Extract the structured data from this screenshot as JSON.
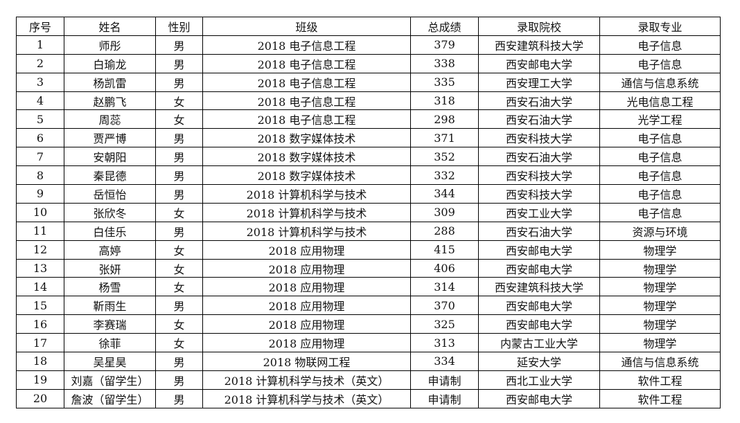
{
  "table": {
    "headers": [
      "序号",
      "姓名",
      "性别",
      "班级",
      "总成绩",
      "录取院校",
      "录取专业"
    ],
    "rows": [
      [
        "1",
        "师彤",
        "男",
        "2018 电子信息工程",
        "379",
        "西安建筑科技大学",
        "电子信息"
      ],
      [
        "2",
        "白瑜龙",
        "男",
        "2018 电子信息工程",
        "338",
        "西安邮电大学",
        "电子信息"
      ],
      [
        "3",
        "杨凯雷",
        "男",
        "2018 电子信息工程",
        "335",
        "西安理工大学",
        "通信与信息系统"
      ],
      [
        "4",
        "赵鹏飞",
        "女",
        "2018 电子信息工程",
        "318",
        "西安石油大学",
        "光电信息工程"
      ],
      [
        "5",
        "周蕊",
        "女",
        "2018 电子信息工程",
        "298",
        "西安石油大学",
        "光学工程"
      ],
      [
        "6",
        "贾严博",
        "男",
        "2018 数字媒体技术",
        "371",
        "西安科技大学",
        "电子信息"
      ],
      [
        "7",
        "安朝阳",
        "男",
        "2018 数字媒体技术",
        "352",
        "西安石油大学",
        "电子信息"
      ],
      [
        "8",
        "秦昆德",
        "男",
        "2018 数字媒体技术",
        "332",
        "西安科技大学",
        "电子信息"
      ],
      [
        "9",
        "岳恒怡",
        "男",
        "2018 计算机科学与技术",
        "344",
        "西安科技大学",
        "电子信息"
      ],
      [
        "10",
        "张欣冬",
        "女",
        "2018 计算机科学与技术",
        "309",
        "西安工业大学",
        "电子信息"
      ],
      [
        "11",
        "白佳乐",
        "男",
        "2018 计算机科学与技术",
        "288",
        "西安石油大学",
        "资源与环境"
      ],
      [
        "12",
        "高婷",
        "女",
        "2018 应用物理",
        "415",
        "西安邮电大学",
        "物理学"
      ],
      [
        "13",
        "张妍",
        "女",
        "2018 应用物理",
        "406",
        "西安邮电大学",
        "物理学"
      ],
      [
        "14",
        "杨雪",
        "女",
        "2018 应用物理",
        "314",
        "西安建筑科技大学",
        "物理学"
      ],
      [
        "15",
        "靳雨生",
        "男",
        "2018 应用物理",
        "370",
        "西安邮电大学",
        "物理学"
      ],
      [
        "16",
        "李赛瑞",
        "女",
        "2018 应用物理",
        "325",
        "西安邮电大学",
        "物理学"
      ],
      [
        "17",
        "徐菲",
        "女",
        "2018 应用物理",
        "313",
        "内蒙古工业大学",
        "物理学"
      ],
      [
        "18",
        "吴星昊",
        "男",
        "2018 物联网工程",
        "334",
        "延安大学",
        "通信与信息系统"
      ],
      [
        "19",
        "刘嘉（留学生）",
        "男",
        "2018 计算机科学与技术（英文）",
        "申请制",
        "西北工业大学",
        "软件工程"
      ],
      [
        "20",
        "詹波（留学生）",
        "男",
        "2018 计算机科学与技术（英文）",
        "申请制",
        "西安邮电大学",
        "软件工程"
      ]
    ]
  }
}
